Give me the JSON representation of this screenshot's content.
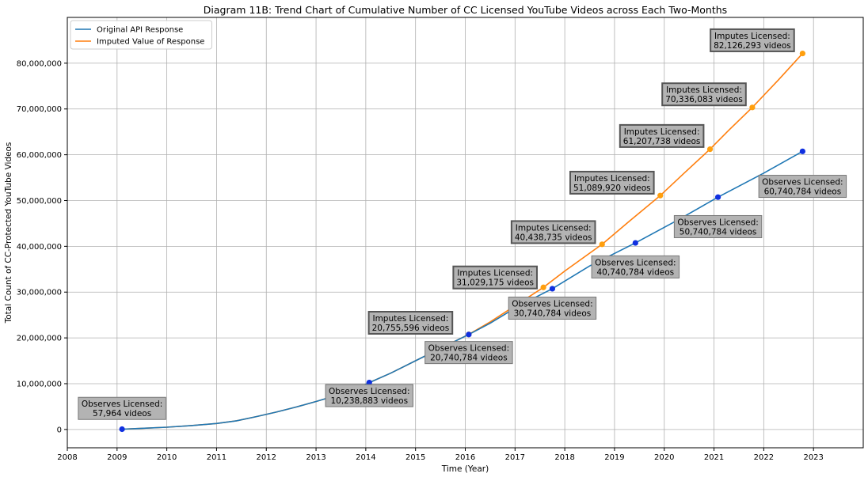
{
  "chart_data": {
    "type": "line",
    "title": "Diagram 11B: Trend Chart of Cumulative Number of CC Licensed YouTube Videos across Each Two-Months",
    "xlabel": "Time (Year)",
    "ylabel": "Total Count of CC-Protected YouTube Videos",
    "xlim": [
      2008,
      2024
    ],
    "ylim": [
      -4000000,
      90000000
    ],
    "x_ticks": [
      2008,
      2009,
      2010,
      2011,
      2012,
      2013,
      2014,
      2015,
      2016,
      2017,
      2018,
      2019,
      2020,
      2021,
      2022,
      2023
    ],
    "y_ticks": [
      0,
      10000000,
      20000000,
      30000000,
      40000000,
      50000000,
      60000000,
      70000000,
      80000000
    ],
    "y_tick_labels": [
      "0",
      "10,000,000",
      "20,000,000",
      "30,000,000",
      "40,000,000",
      "50,000,000",
      "60,000,000",
      "70,000,000",
      "80,000,000"
    ],
    "grid": true,
    "legend_position": "top-left",
    "series": [
      {
        "name": "Original API Response",
        "color": "#1f77b4",
        "x": [
          2009.1,
          2009.5,
          2010.0,
          2010.5,
          2011.0,
          2011.4,
          2011.8,
          2012.2,
          2012.6,
          2013.0,
          2013.4,
          2013.8,
          2014.07,
          2014.5,
          2015.0,
          2015.5,
          2016.07,
          2016.5,
          2017.0,
          2017.4,
          2017.75,
          2018.5,
          2019.42,
          2020.3,
          2021.08,
          2022.0,
          2022.78
        ],
        "y": [
          57964,
          250000,
          500000,
          850000,
          1300000,
          1900000,
          2800000,
          3800000,
          4900000,
          6100000,
          7400000,
          8900000,
          10238883,
          12300000,
          15000000,
          17700000,
          20740784,
          23200000,
          26500000,
          28800000,
          30740784,
          35700000,
          40740784,
          45900000,
          50740784,
          56000000,
          60740784
        ]
      },
      {
        "name": "Imputed Value of Response",
        "color": "#ff7f0e",
        "x": [
          2009.1,
          2009.5,
          2010.0,
          2010.5,
          2011.0,
          2011.4,
          2011.8,
          2012.2,
          2012.6,
          2013.0,
          2013.4,
          2013.8,
          2014.07,
          2014.5,
          2015.0,
          2015.5,
          2016.07,
          2016.5,
          2017.0,
          2017.57,
          2018.0,
          2018.75,
          2019.3,
          2019.92,
          2020.4,
          2020.92,
          2021.3,
          2021.77,
          2022.3,
          2022.78
        ],
        "y": [
          57964,
          250000,
          500000,
          850000,
          1300000,
          1900000,
          2800000,
          3800000,
          4900000,
          6100000,
          7400000,
          8900000,
          10238883,
          12300000,
          15000000,
          17700000,
          20755596,
          23500000,
          27000000,
          31029175,
          34600000,
          40438735,
          45500000,
          51089920,
          56000000,
          61207738,
          65400000,
          70336083,
          76400000,
          82126293
        ]
      }
    ],
    "markers": {
      "observed": [
        {
          "x": 2009.1,
          "y": 57964
        },
        {
          "x": 2014.07,
          "y": 10238883
        },
        {
          "x": 2016.07,
          "y": 20740784
        },
        {
          "x": 2017.75,
          "y": 30740784
        },
        {
          "x": 2019.42,
          "y": 40740784
        },
        {
          "x": 2021.08,
          "y": 50740784
        },
        {
          "x": 2022.78,
          "y": 60740784
        }
      ],
      "imputed": [
        {
          "x": 2016.07,
          "y": 20755596
        },
        {
          "x": 2017.57,
          "y": 31029175
        },
        {
          "x": 2018.75,
          "y": 40438735
        },
        {
          "x": 2019.92,
          "y": 51089920
        },
        {
          "x": 2020.92,
          "y": 61207738
        },
        {
          "x": 2021.77,
          "y": 70336083
        },
        {
          "x": 2022.78,
          "y": 82126293
        }
      ]
    },
    "annotations": [
      {
        "kind": "observed",
        "line1": "Observes Licensed:",
        "line2": "57,964 videos",
        "ax": 2009.1,
        "ay": 4600000
      },
      {
        "kind": "observed",
        "line1": "Observes Licensed:",
        "line2": "10,238,883 videos",
        "ax": 2014.07,
        "ay": 7400000
      },
      {
        "kind": "observed",
        "line1": "Observes Licensed:",
        "line2": "20,740,784 videos",
        "ax": 2016.07,
        "ay": 16800000
      },
      {
        "kind": "observed",
        "line1": "Observes Licensed:",
        "line2": "30,740,784 videos",
        "ax": 2017.75,
        "ay": 26500000
      },
      {
        "kind": "observed",
        "line1": "Observes Licensed:",
        "line2": "40,740,784 videos",
        "ax": 2019.42,
        "ay": 35500000
      },
      {
        "kind": "observed",
        "line1": "Observes Licensed:",
        "line2": "50,740,784 videos",
        "ax": 2021.08,
        "ay": 44300000
      },
      {
        "kind": "observed",
        "line1": "Observes Licensed:",
        "line2": "60,740,784 videos",
        "ax": 2022.78,
        "ay": 53100000
      },
      {
        "kind": "imputed",
        "line1": "Imputes Licensed:",
        "line2": "20,755,596 videos",
        "ax": 2014.9,
        "ay": 23300000
      },
      {
        "kind": "imputed",
        "line1": "Imputes Licensed:",
        "line2": "31,029,175 videos",
        "ax": 2016.6,
        "ay": 33200000
      },
      {
        "kind": "imputed",
        "line1": "Imputes Licensed:",
        "line2": "40,438,735 videos",
        "ax": 2017.77,
        "ay": 43100000
      },
      {
        "kind": "imputed",
        "line1": "Imputes Licensed:",
        "line2": "51,089,920 videos",
        "ax": 2018.95,
        "ay": 53900000
      },
      {
        "kind": "imputed",
        "line1": "Imputes Licensed:",
        "line2": "61,207,738 videos",
        "ax": 2019.95,
        "ay": 64100000
      },
      {
        "kind": "imputed",
        "line1": "Imputes Licensed:",
        "line2": "70,336,083 videos",
        "ax": 2020.8,
        "ay": 73200000
      },
      {
        "kind": "imputed",
        "line1": "Imputes Licensed:",
        "line2": "82,126,293 videos",
        "ax": 2021.77,
        "ay": 85000000
      }
    ]
  }
}
